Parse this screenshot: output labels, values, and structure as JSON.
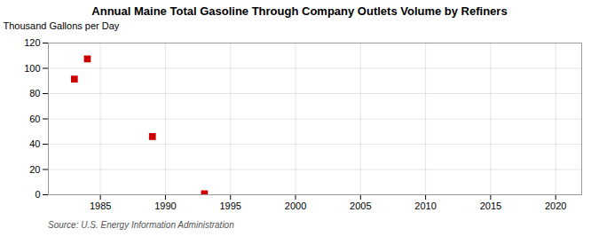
{
  "chart_data": {
    "type": "scatter",
    "title": "Annual Maine Total Gasoline Through Company Outlets Volume by Refiners",
    "ylabel": "Thousand Gallons per Day",
    "source": "Source: U.S. Energy Information Administration",
    "x": [
      1983,
      1984,
      1989,
      1993
    ],
    "values": [
      91.5,
      107.5,
      46.0,
      0.8
    ],
    "color": "#cc0000",
    "marker": "square",
    "xlim": [
      1981,
      2022
    ],
    "ylim": [
      0,
      120
    ],
    "xticks": [
      1985,
      1990,
      1995,
      2000,
      2005,
      2010,
      2015,
      2020
    ],
    "yticks": [
      0,
      20,
      40,
      60,
      80,
      100,
      120
    ],
    "grid": true
  }
}
